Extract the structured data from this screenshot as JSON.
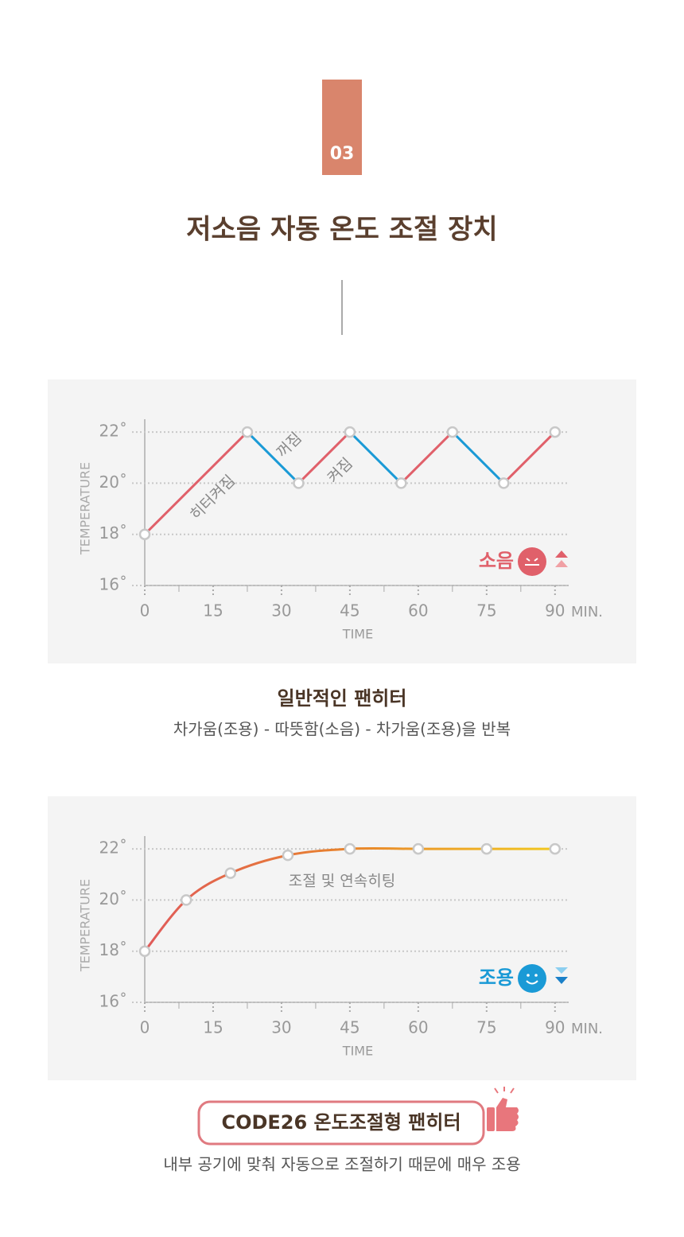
{
  "header": {
    "badge": "03",
    "title": "저소음 자동 온도 조절 장치"
  },
  "chart_data": [
    {
      "type": "zigzag",
      "title": "일반적인 팬히터",
      "subtitle": "차가움(조용) - 따뜻함(소음) - 차가움(조용)을 반복",
      "x": [
        0,
        22.5,
        33.75,
        45,
        56.25,
        67.5,
        78.75,
        90
      ],
      "values": [
        18,
        22,
        20,
        22,
        20,
        22,
        20,
        22
      ],
      "rise_color": "#e0606a",
      "fall_color": "#1a9ad6",
      "annotations": [
        "히터켜짐",
        "꺼짐",
        "켜짐"
      ],
      "status_label": "소음",
      "status_color": "#e0606a",
      "xlabel": "TIME",
      "ylabel": "TEMPERATURE",
      "x_unit": "MIN.",
      "xlim": [
        0,
        93
      ],
      "xticks": [
        0,
        15,
        30,
        45,
        60,
        75,
        90
      ],
      "ylim": [
        16,
        22.5
      ],
      "yticks": [
        {
          "value": 16,
          "label": "16˚"
        },
        {
          "value": 18,
          "label": "18˚"
        },
        {
          "value": 20,
          "label": "20˚"
        },
        {
          "value": 22,
          "label": "22˚"
        }
      ],
      "grid": true
    },
    {
      "type": "curve",
      "title": "CODE26 온도조절형 팬히터",
      "subtitle": "내부 공기에 맞춰 자동으로 조절하기 때문에 매우 조용",
      "x": [
        0,
        9.1,
        18.8,
        31.4,
        45,
        60,
        75,
        90
      ],
      "values": [
        18,
        20,
        21.05,
        21.75,
        22,
        22,
        22,
        22
      ],
      "colors": [
        "#e05a5a",
        "#e8842c",
        "#f2c820"
      ],
      "annotations": [
        "조절 및 연속히팅"
      ],
      "status_label": "조용",
      "status_color": "#1a9ad6",
      "xlabel": "TIME",
      "ylabel": "TEMPERATURE",
      "x_unit": "MIN.",
      "xlim": [
        0,
        93
      ],
      "xticks": [
        0,
        15,
        30,
        45,
        60,
        75,
        90
      ],
      "ylim": [
        16,
        22.5
      ],
      "yticks": [
        {
          "value": 16,
          "label": "16˚"
        },
        {
          "value": 18,
          "label": "18˚"
        },
        {
          "value": 20,
          "label": "20˚"
        },
        {
          "value": 22,
          "label": "22˚"
        }
      ],
      "grid": true
    }
  ]
}
